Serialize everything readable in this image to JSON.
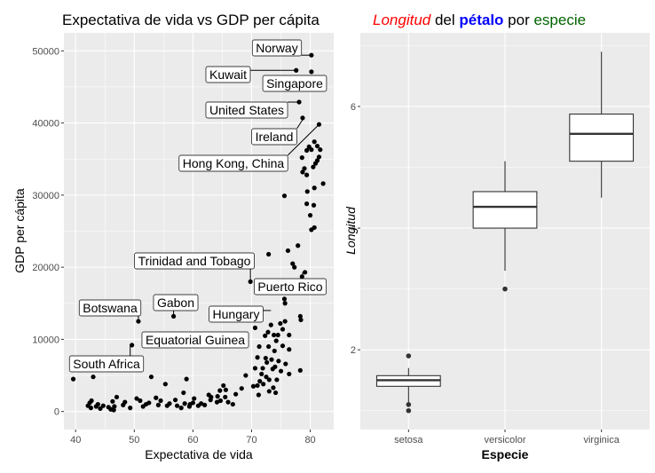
{
  "chart_data": [
    {
      "type": "scatter",
      "title": "Expectativa de vida vs GDP per cápita",
      "xlabel": "Expectativa de vida",
      "ylabel": "GDP per cápita",
      "xlim": [
        38,
        84
      ],
      "ylim": [
        -2500,
        52500
      ],
      "x_ticks": [
        40,
        50,
        60,
        70,
        80
      ],
      "y_ticks": [
        0,
        10000,
        20000,
        30000,
        40000,
        50000
      ],
      "grid": true,
      "points": [
        [
          39.6,
          4500
        ],
        [
          42.1,
          800
        ],
        [
          42.4,
          1200
        ],
        [
          42.6,
          500
        ],
        [
          42.7,
          1500
        ],
        [
          43.0,
          4800
        ],
        [
          43.5,
          700
        ],
        [
          43.8,
          1000
        ],
        [
          44.2,
          400
        ],
        [
          44.7,
          800
        ],
        [
          45.6,
          600
        ],
        [
          46.0,
          300
        ],
        [
          46.3,
          1400
        ],
        [
          46.5,
          200
        ],
        [
          46.6,
          700
        ],
        [
          47.0,
          2000
        ],
        [
          48.1,
          900
        ],
        [
          48.4,
          1300
        ],
        [
          49.3,
          500
        ],
        [
          49.6,
          9200
        ],
        [
          50.4,
          1800
        ],
        [
          50.7,
          12500
        ],
        [
          51.0,
          1500
        ],
        [
          51.5,
          700
        ],
        [
          52.0,
          1000
        ],
        [
          52.5,
          1200
        ],
        [
          52.9,
          4800
        ],
        [
          53.7,
          1900
        ],
        [
          54.1,
          900
        ],
        [
          54.5,
          1500
        ],
        [
          55.3,
          3800
        ],
        [
          55.6,
          800
        ],
        [
          56.0,
          1100
        ],
        [
          56.7,
          13200
        ],
        [
          57.0,
          1600
        ],
        [
          57.3,
          800
        ],
        [
          58.0,
          500
        ],
        [
          58.4,
          2600
        ],
        [
          58.6,
          1100
        ],
        [
          58.9,
          4500
        ],
        [
          59.4,
          700
        ],
        [
          59.5,
          1000
        ],
        [
          60.0,
          1200
        ],
        [
          60.2,
          1800
        ],
        [
          60.9,
          800
        ],
        [
          61.4,
          1100
        ],
        [
          62.0,
          900
        ],
        [
          62.7,
          2300
        ],
        [
          63.0,
          1600
        ],
        [
          63.1,
          2000
        ],
        [
          64.1,
          1300
        ],
        [
          64.2,
          2100
        ],
        [
          64.6,
          2900
        ],
        [
          64.7,
          1500
        ],
        [
          65.2,
          3600
        ],
        [
          65.5,
          2000
        ],
        [
          65.6,
          3000
        ],
        [
          66.0,
          1300
        ],
        [
          66.8,
          1000
        ],
        [
          67.3,
          2400
        ],
        [
          68.3,
          3200
        ],
        [
          69.0,
          5000
        ],
        [
          69.8,
          18000
        ],
        [
          70.3,
          3500
        ],
        [
          70.6,
          11600
        ],
        [
          70.6,
          6000
        ],
        [
          71.0,
          3600
        ],
        [
          71.0,
          7500
        ],
        [
          71.2,
          2300
        ],
        [
          71.3,
          9000
        ],
        [
          71.4,
          4200
        ],
        [
          71.7,
          5200
        ],
        [
          71.9,
          6000
        ],
        [
          72.0,
          3800
        ],
        [
          72.3,
          10500
        ],
        [
          72.4,
          7400
        ],
        [
          72.5,
          4800
        ],
        [
          72.6,
          6800
        ],
        [
          72.8,
          11000
        ],
        [
          72.9,
          9000
        ],
        [
          72.9,
          21800
        ],
        [
          73.0,
          2800
        ],
        [
          73.0,
          4400
        ],
        [
          73.3,
          12000
        ],
        [
          73.4,
          7200
        ],
        [
          73.6,
          5900
        ],
        [
          73.7,
          3300
        ],
        [
          73.8,
          10600
        ],
        [
          73.9,
          8400
        ],
        [
          74.0,
          6200
        ],
        [
          74.1,
          2600
        ],
        [
          74.2,
          9800
        ],
        [
          74.3,
          4400
        ],
        [
          74.5,
          10600
        ],
        [
          74.6,
          7000
        ],
        [
          74.8,
          18000
        ],
        [
          74.9,
          12200
        ],
        [
          75.0,
          5600
        ],
        [
          75.3,
          11400
        ],
        [
          75.3,
          9100
        ],
        [
          75.6,
          29900
        ],
        [
          75.6,
          15600
        ],
        [
          75.7,
          15000
        ],
        [
          75.7,
          12500
        ],
        [
          75.8,
          6600
        ],
        [
          76.2,
          22300
        ],
        [
          76.4,
          10600
        ],
        [
          76.4,
          8600
        ],
        [
          76.4,
          5200
        ],
        [
          77.0,
          20500
        ],
        [
          77.3,
          20000
        ],
        [
          77.6,
          47300
        ],
        [
          77.9,
          23000
        ],
        [
          78.1,
          42900
        ],
        [
          78.3,
          5700
        ],
        [
          78.4,
          12700
        ],
        [
          78.3,
          13200
        ],
        [
          78.6,
          18700
        ],
        [
          78.6,
          35200
        ],
        [
          78.7,
          40700
        ],
        [
          78.7,
          33200
        ],
        [
          79.0,
          33700
        ],
        [
          79.1,
          19300
        ],
        [
          79.4,
          36200
        ],
        [
          79.4,
          32800
        ],
        [
          79.4,
          28800
        ],
        [
          79.5,
          30500
        ],
        [
          79.8,
          36700
        ],
        [
          80.0,
          27200
        ],
        [
          80.2,
          25200
        ],
        [
          80.2,
          47100
        ],
        [
          80.2,
          36300
        ],
        [
          80.2,
          49400
        ],
        [
          80.5,
          33900
        ],
        [
          80.6,
          28600
        ],
        [
          80.7,
          31000
        ],
        [
          80.7,
          37400
        ],
        [
          80.7,
          25500
        ],
        [
          80.9,
          34400
        ],
        [
          81.2,
          36800
        ],
        [
          81.2,
          34800
        ],
        [
          81.5,
          35300
        ],
        [
          81.5,
          39800
        ],
        [
          81.7,
          36300
        ],
        [
          82.2,
          31600
        ]
      ],
      "annotations": [
        {
          "text": "Norway",
          "x": 80.2,
          "y": 49400
        },
        {
          "text": "Kuwait",
          "x": 77.6,
          "y": 47300
        },
        {
          "text": "Singapore",
          "x": 80.0,
          "y": 47100
        },
        {
          "text": "United States",
          "x": 78.1,
          "y": 42900
        },
        {
          "text": "Ireland",
          "x": 78.9,
          "y": 40700
        },
        {
          "text": "Hong Kong, China",
          "x": 81.5,
          "y": 39800
        },
        {
          "text": "Trinidad and Tobago",
          "x": 69.8,
          "y": 18000
        },
        {
          "text": "Puerto Rico",
          "x": 78.7,
          "y": 19300
        },
        {
          "text": "Gabon",
          "x": 56.7,
          "y": 13200
        },
        {
          "text": "Botswana",
          "x": 50.7,
          "y": 12500
        },
        {
          "text": "Hungary",
          "x": 73.3,
          "y": 14000
        },
        {
          "text": "Equatorial Guinea",
          "x": 51.6,
          "y": 9000
        },
        {
          "text": "South Africa",
          "x": 49.3,
          "y": 9300
        }
      ]
    },
    {
      "type": "box",
      "title_parts": [
        {
          "text": "Longitud",
          "style": "italic",
          "color": "#ff0000"
        },
        {
          "text": " del ",
          "style": "normal",
          "color": "#000000"
        },
        {
          "text": "pétalo",
          "style": "bold",
          "color": "#0000ff"
        },
        {
          "text": " por ",
          "style": "normal",
          "color": "#000000"
        },
        {
          "text": "especie",
          "style": "normal",
          "color": "#006400"
        }
      ],
      "xlabel": "Especie",
      "ylabel": "Longitud",
      "ylim": [
        0.69,
        7.21
      ],
      "y_ticks": [
        2,
        4,
        6
      ],
      "categories": [
        "setosa",
        "versicolor",
        "virginica"
      ],
      "boxes": [
        {
          "category": "setosa",
          "min": 1.1,
          "q1": 1.4,
          "median": 1.5,
          "q3": 1.575,
          "max": 1.7,
          "outliers": [
            1.9,
            1.0,
            1.1
          ]
        },
        {
          "category": "versicolor",
          "min": 3.3,
          "q1": 4.0,
          "median": 4.35,
          "q3": 4.6,
          "max": 5.1,
          "outliers": [
            3.0
          ]
        },
        {
          "category": "virginica",
          "min": 4.5,
          "q1": 5.1,
          "median": 5.55,
          "q3": 5.875,
          "max": 6.9,
          "outliers": []
        }
      ]
    }
  ]
}
